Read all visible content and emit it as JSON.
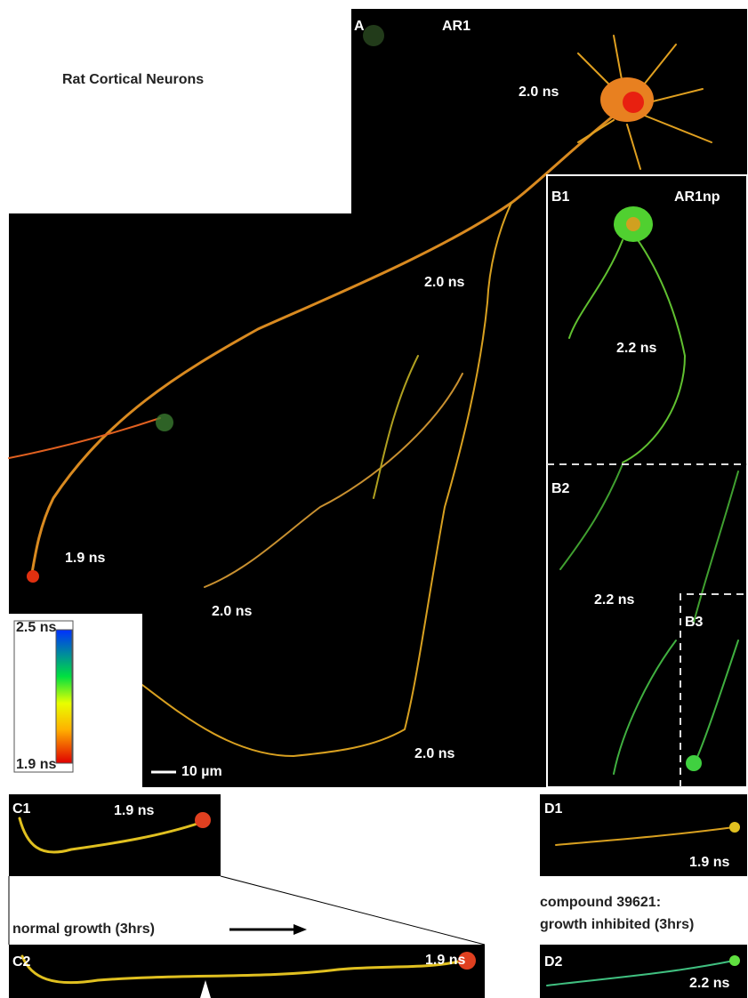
{
  "title": "Rat Cortical Neurons",
  "panels": {
    "A": {
      "label": "A",
      "name": "AR1",
      "lifetimes": [
        "2.0 ns",
        "2.0 ns",
        "1.9 ns",
        "2.0 ns",
        "2.0 ns"
      ],
      "scale_bar": "10 µm"
    },
    "B1": {
      "label": "B1",
      "name": "AR1np",
      "lifetime": "2.2 ns"
    },
    "B2": {
      "label": "B2",
      "lifetime": "2.2 ns"
    },
    "B3": {
      "label": "B3"
    },
    "C1": {
      "label": "C1",
      "lifetime": "1.9 ns"
    },
    "C2": {
      "label": "C2",
      "lifetime": "1.9 ns"
    },
    "D1": {
      "label": "D1",
      "lifetime": "1.9 ns"
    },
    "D2": {
      "label": "D2",
      "lifetime": "2.2 ns"
    }
  },
  "colorbar": {
    "max": "2.5 ns",
    "min": "1.9 ns"
  },
  "annotations": {
    "normal": "normal growth (3hrs)",
    "compound": [
      "compound 39621:",
      "growth inhibited (3hrs)"
    ]
  }
}
